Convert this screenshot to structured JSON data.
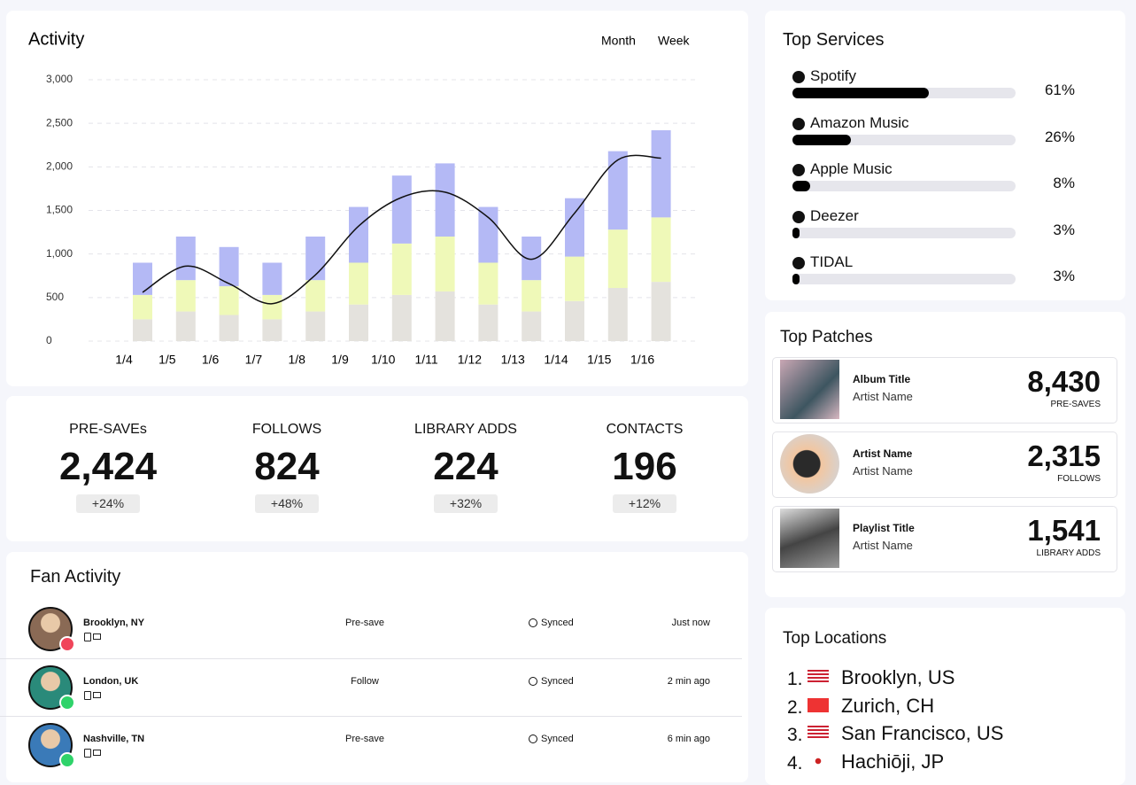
{
  "chart_data": {
    "type": "stacked-bar",
    "title": "Activity",
    "tabs": [
      "Month",
      "Week"
    ],
    "categories": [
      "1/4",
      "1/5",
      "1/6",
      "1/7",
      "1/8",
      "1/9",
      "1/10",
      "1/11",
      "1/12",
      "1/13",
      "1/14",
      "1/15",
      "1/16"
    ],
    "series": [
      {
        "color": "#e4e2dd",
        "values": [
          250,
          340,
          300,
          250,
          340,
          420,
          530,
          570,
          420,
          340,
          460,
          610,
          680
        ]
      },
      {
        "color": "#eff9b8",
        "values": [
          280,
          360,
          330,
          280,
          360,
          480,
          590,
          630,
          480,
          360,
          510,
          670,
          740
        ]
      },
      {
        "color": "#b4b9f5",
        "values": [
          370,
          500,
          450,
          370,
          500,
          640,
          780,
          840,
          640,
          500,
          670,
          900,
          1000
        ]
      }
    ],
    "line_values": [
      560,
      860,
      660,
      430,
      760,
      1320,
      1650,
      1710,
      1420,
      940,
      1470,
      2080,
      2100
    ],
    "line_color": "#111111",
    "ylim": [
      0,
      3000
    ],
    "yticks": [
      0,
      500,
      {
        "value": 1000,
        "label": "1,000"
      },
      {
        "value": 1500,
        "label": "1,500"
      },
      {
        "value": 2000,
        "label": "2,000"
      },
      {
        "value": 2500,
        "label": "2,500"
      },
      {
        "value": 3000,
        "label": "3,000"
      }
    ],
    "grid": true
  },
  "stats": [
    {
      "label": "PRE-SAVEs",
      "value": "2,424",
      "change": "+24%"
    },
    {
      "label": "FOLLOWS",
      "value": "824",
      "change": "+48%"
    },
    {
      "label": "LIBRARY ADDS",
      "value": "224",
      "change": "+32%"
    },
    {
      "label": "CONTACTS",
      "value": "196",
      "change": "+12%"
    }
  ],
  "fan_activity": {
    "title": "Fan Activity",
    "rows": [
      {
        "location": "Brooklyn, NY",
        "action": "Pre-save",
        "status": "Synced",
        "time": "Just now",
        "badge": "#f0455a",
        "avatar": "#8a6a55"
      },
      {
        "location": "London, UK",
        "action": "Follow",
        "status": "Synced",
        "time": "2 min ago",
        "badge": "#2fd36a",
        "avatar": "#2a8a7a"
      },
      {
        "location": "Nashville, TN",
        "action": "Pre-save",
        "status": "Synced",
        "time": "6 min ago",
        "badge": "#2fd36a",
        "avatar": "#3a7ab8"
      }
    ]
  },
  "top_services": {
    "title": "Top Services",
    "items": [
      {
        "name": "Spotify",
        "percent": 61,
        "percent_label": "61%"
      },
      {
        "name": "Amazon Music",
        "percent": 26,
        "percent_label": "26%"
      },
      {
        "name": "Apple Music",
        "percent": 8,
        "percent_label": "8%"
      },
      {
        "name": "Deezer",
        "percent": 3,
        "percent_label": "3%"
      },
      {
        "name": "TIDAL",
        "percent": 3,
        "percent_label": "3%"
      }
    ]
  },
  "top_patches": {
    "title": "Top Patches",
    "items": [
      {
        "title": "Album Title",
        "subtitle": "Artist Name",
        "value": "8,430",
        "metric": "PRE-SAVES"
      },
      {
        "title": "Artist Name",
        "subtitle": "Artist Name",
        "value": "2,315",
        "metric": "FOLLOWS"
      },
      {
        "title": "Playlist Title",
        "subtitle": "Artist Name",
        "value": "1,541",
        "metric": "LIBRARY ADDS"
      }
    ]
  },
  "top_locations": {
    "title": "Top Locations",
    "items": [
      {
        "rank": "1.",
        "name": "Brooklyn, US",
        "flag": "us"
      },
      {
        "rank": "2.",
        "name": "Zurich, CH",
        "flag": "ch"
      },
      {
        "rank": "3.",
        "name": "San Francisco, US",
        "flag": "us"
      },
      {
        "rank": "4.",
        "name": "Hachiōji, JP",
        "flag": "jp"
      }
    ]
  }
}
